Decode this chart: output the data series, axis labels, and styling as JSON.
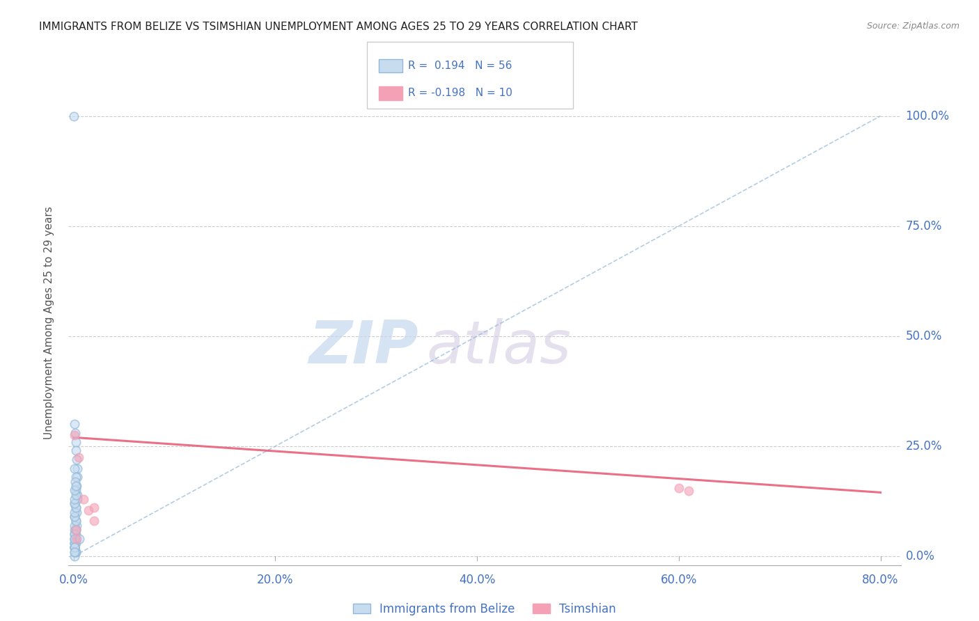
{
  "title": "IMMIGRANTS FROM BELIZE VS TSIMSHIAN UNEMPLOYMENT AMONG AGES 25 TO 29 YEARS CORRELATION CHART",
  "source": "Source: ZipAtlas.com",
  "ylabel": "Unemployment Among Ages 25 to 29 years",
  "xlim": [
    -0.005,
    0.82
  ],
  "ylim": [
    -0.02,
    1.08
  ],
  "xticks": [
    0.0,
    0.2,
    0.4,
    0.6,
    0.8
  ],
  "xtick_labels": [
    "0.0%",
    "20.0%",
    "40.0%",
    "60.0%",
    "80.0%"
  ],
  "yticks": [
    0.0,
    0.25,
    0.5,
    0.75,
    1.0
  ],
  "ytick_labels": [
    "0.0%",
    "25.0%",
    "50.0%",
    "75.0%",
    "100.0%"
  ],
  "blue_scatter_x": [
    0.0005,
    0.001,
    0.0015,
    0.002,
    0.0025,
    0.003,
    0.0035,
    0.004,
    0.001,
    0.002,
    0.003,
    0.004,
    0.0015,
    0.0025,
    0.0035,
    0.001,
    0.002,
    0.003,
    0.001,
    0.002,
    0.003,
    0.001,
    0.002,
    0.001,
    0.002,
    0.001,
    0.002,
    0.001,
    0.002,
    0.001,
    0.001,
    0.002,
    0.001,
    0.002,
    0.001,
    0.002,
    0.001,
    0.001,
    0.002,
    0.001,
    0.001,
    0.002,
    0.001,
    0.002,
    0.001,
    0.001,
    0.001,
    0.001,
    0.002,
    0.001,
    0.001,
    0.001,
    0.001,
    0.001,
    0.001,
    0.006
  ],
  "blue_scatter_y": [
    1.0,
    0.3,
    0.28,
    0.26,
    0.24,
    0.22,
    0.2,
    0.18,
    0.2,
    0.18,
    0.16,
    0.14,
    0.17,
    0.15,
    0.13,
    0.12,
    0.11,
    0.1,
    0.09,
    0.08,
    0.07,
    0.06,
    0.05,
    0.04,
    0.03,
    0.02,
    0.01,
    0.0,
    0.01,
    0.02,
    0.03,
    0.04,
    0.05,
    0.06,
    0.07,
    0.08,
    0.09,
    0.1,
    0.11,
    0.12,
    0.13,
    0.14,
    0.15,
    0.16,
    0.02,
    0.03,
    0.04,
    0.05,
    0.06,
    0.02,
    0.03,
    0.04,
    0.01,
    0.02,
    0.01,
    0.04
  ],
  "pink_scatter_x": [
    0.001,
    0.005,
    0.01,
    0.015,
    0.02,
    0.02,
    0.6,
    0.61,
    0.002,
    0.003
  ],
  "pink_scatter_y": [
    0.275,
    0.225,
    0.13,
    0.105,
    0.11,
    0.08,
    0.155,
    0.148,
    0.06,
    0.04
  ],
  "blue_line_x": [
    0.0,
    0.8
  ],
  "blue_line_y": [
    0.0,
    1.0
  ],
  "pink_line_x": [
    0.0,
    0.8
  ],
  "pink_line_y": [
    0.27,
    0.145
  ],
  "blue_color": "#90b8d8",
  "pink_color": "#f4a0b5",
  "blue_line_color": "#90b8d8",
  "pink_line_color": "#e8607a",
  "legend_blue_r": "0.194",
  "legend_blue_n": "56",
  "legend_pink_r": "-0.198",
  "legend_pink_n": "10",
  "watermark_zip": "ZIP",
  "watermark_atlas": "atlas",
  "background_color": "#ffffff",
  "grid_color": "#cccccc",
  "tick_color": "#4472c4",
  "title_fontsize": 11,
  "axis_label_fontsize": 11,
  "scatter_size": 80
}
